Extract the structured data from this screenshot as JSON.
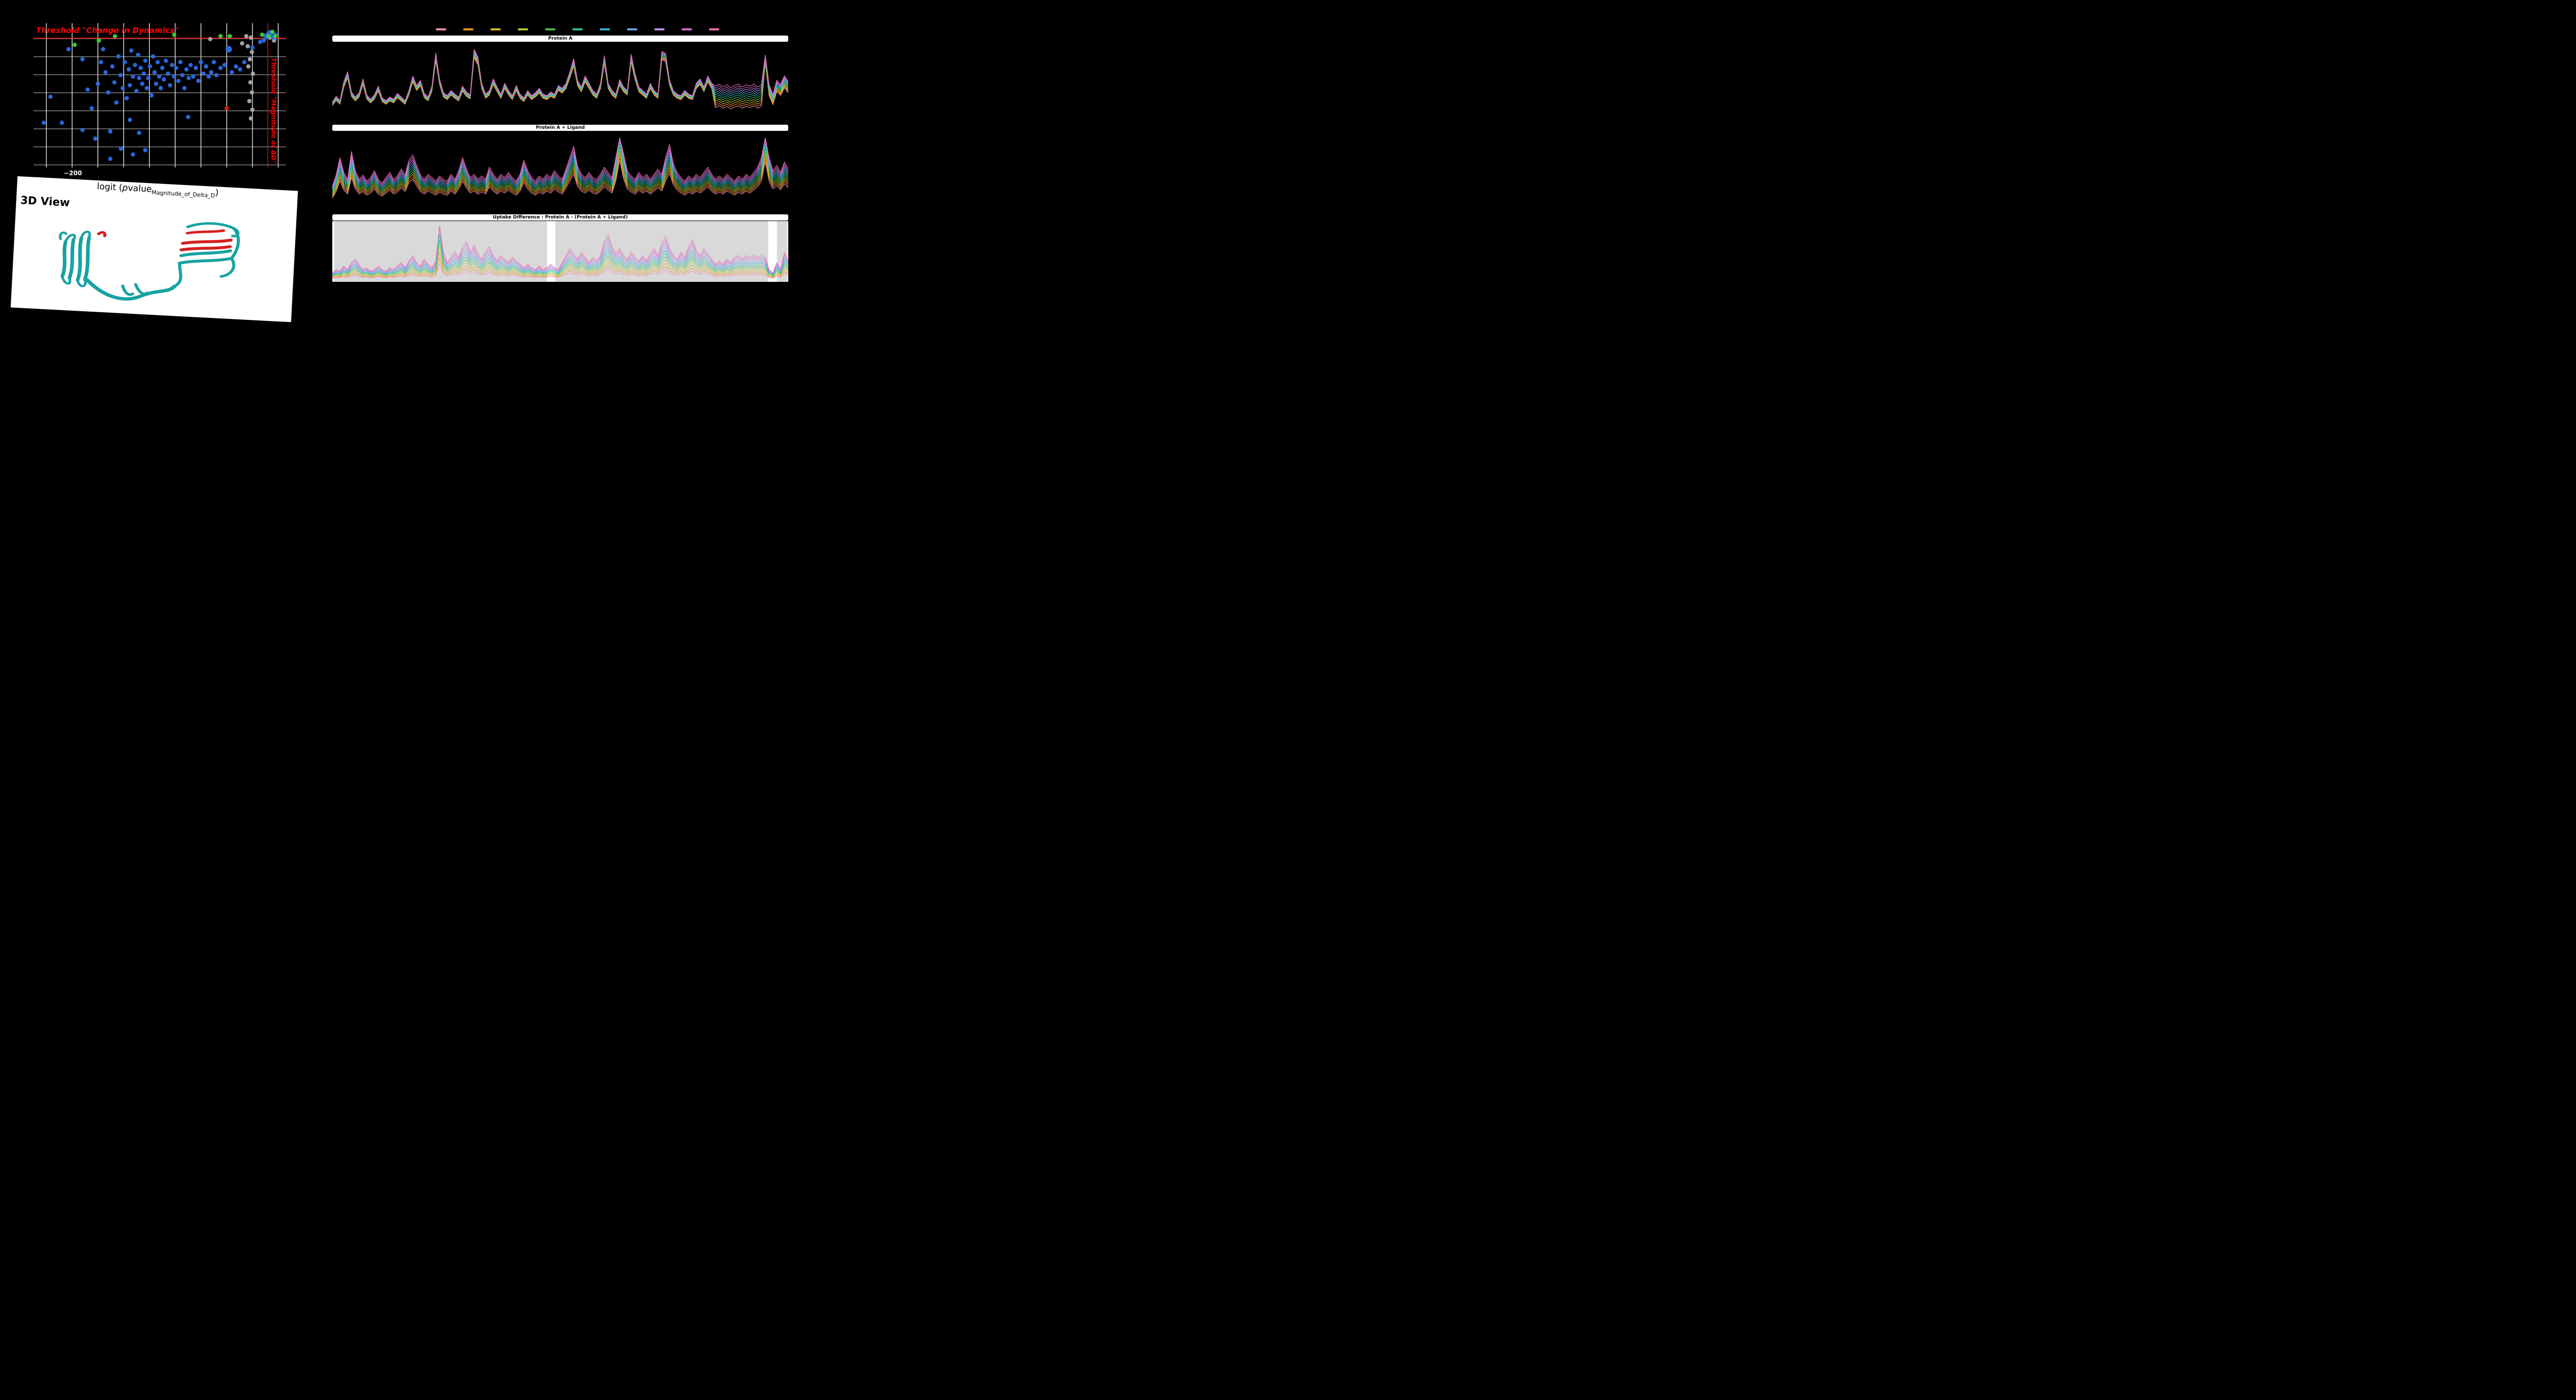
{
  "app": {
    "background": "#000000",
    "accent_threshold": "#ff0000"
  },
  "ui": {
    "volcano": {
      "threshold_top": "Threshold \"Change in Dynamics\"",
      "threshold_right": "Threshold \"Magnitude of ΔD\"",
      "xtick": "−200",
      "xlabel_pre": "logit (",
      "xlabel_p": "p",
      "xlabel_value": "value",
      "xlabel_sub": "Magnitude_of_Delta_D",
      "xlabel_post": ")"
    },
    "view3d": {
      "title": "3D View"
    },
    "panels": [
      {
        "title": "Protein A"
      },
      {
        "title": "Protein A + Ligand"
      },
      {
        "title": "Uptake Difference : Protein A - (Protein A + Ligand)"
      }
    ]
  },
  "view3d": {
    "ribbon_color": "#17a2a2",
    "highlight_color": "#d42020"
  },
  "legend": {
    "colors": [
      "#f48caa",
      "#f1902d",
      "#d9b02c",
      "#a8c93c",
      "#4db84d",
      "#2fbf9a",
      "#2fb6cf",
      "#6f9fe8",
      "#b98fe6",
      "#d06ad0",
      "#ef6fae"
    ]
  },
  "chart_data": [
    {
      "id": "volcano",
      "type": "scatter",
      "xlabel": "logit (pvalue_Magnitude_of_Delta_D)",
      "ylabel": "",
      "xlim": [
        -240,
        10
      ],
      "ylim": [
        0,
        1
      ],
      "xticks": [
        -200
      ],
      "grid": true,
      "threshold_y": 0.896,
      "threshold_x": -8,
      "threshold_color": "#ff0000",
      "colors": {
        "gray": "#a9a9a9",
        "blue": "#2b6be4",
        "green": "#35d435",
        "red": "#e8190f"
      },
      "points": {
        "blue": [
          [
            -229.8,
            0.31
          ],
          [
            -223.2,
            0.49
          ],
          [
            -211.9,
            0.31
          ],
          [
            -205.3,
            0.82
          ],
          [
            -191.5,
            0.75
          ],
          [
            -186.4,
            0.54
          ],
          [
            -182.3,
            0.41
          ],
          [
            -178.8,
            0.2
          ],
          [
            -176.2,
            0.58
          ],
          [
            -173.2,
            0.73
          ],
          [
            -171.1,
            0.82
          ],
          [
            -168.6,
            0.66
          ],
          [
            -166.0,
            0.52
          ],
          [
            -164.0,
            0.25
          ],
          [
            -161.9,
            0.7
          ],
          [
            -159.9,
            0.59
          ],
          [
            -157.9,
            0.45
          ],
          [
            -155.8,
            0.77
          ],
          [
            -153.8,
            0.64
          ],
          [
            -151.7,
            0.55
          ],
          [
            -149.7,
            0.73
          ],
          [
            -147.7,
            0.48
          ],
          [
            -145.6,
            0.68
          ],
          [
            -144.6,
            0.57
          ],
          [
            -143.1,
            0.81
          ],
          [
            -141.5,
            0.63
          ],
          [
            -139.5,
            0.71
          ],
          [
            -138.0,
            0.53
          ],
          [
            -136.4,
            0.78
          ],
          [
            -135.4,
            0.62
          ],
          [
            -133.9,
            0.69
          ],
          [
            -132.3,
            0.58
          ],
          [
            -130.8,
            0.65
          ],
          [
            -129.3,
            0.74
          ],
          [
            -127.8,
            0.55
          ],
          [
            -126.2,
            0.62
          ],
          [
            -124.7,
            0.7
          ],
          [
            -123.2,
            0.5
          ],
          [
            -121.6,
            0.77
          ],
          [
            -120.1,
            0.66
          ],
          [
            -118.6,
            0.58
          ],
          [
            -117.0,
            0.73
          ],
          [
            -115.5,
            0.63
          ],
          [
            -114.0,
            0.55
          ],
          [
            -112.4,
            0.69
          ],
          [
            -110.9,
            0.61
          ],
          [
            -108.9,
            0.74
          ],
          [
            -106.8,
            0.65
          ],
          [
            -104.8,
            0.57
          ],
          [
            -102.8,
            0.71
          ],
          [
            -100.7,
            0.63
          ],
          [
            -98.7,
            0.69
          ],
          [
            -96.6,
            0.6
          ],
          [
            -94.6,
            0.73
          ],
          [
            -92.6,
            0.64
          ],
          [
            -90.5,
            0.55
          ],
          [
            -88.5,
            0.68
          ],
          [
            -86.4,
            0.62
          ],
          [
            -84.4,
            0.71
          ],
          [
            -81.8,
            0.63
          ],
          [
            -79.3,
            0.69
          ],
          [
            -76.7,
            0.6
          ],
          [
            -74.2,
            0.73
          ],
          [
            -71.6,
            0.65
          ],
          [
            -69.1,
            0.7
          ],
          [
            -66.5,
            0.63
          ],
          [
            -64.0,
            0.66
          ],
          [
            -61.4,
            0.73
          ],
          [
            -58.9,
            0.64
          ],
          [
            -54.8,
            0.69
          ],
          [
            -50.7,
            0.71
          ],
          [
            -46.6,
            0.82,
            1.5
          ],
          [
            -43.6,
            0.66
          ],
          [
            -39.5,
            0.7
          ],
          [
            -35.4,
            0.68
          ],
          [
            -31.3,
            0.73
          ],
          [
            -23.2,
            0.83
          ],
          [
            -164.0,
            0.06
          ],
          [
            -153.3,
            0.13
          ],
          [
            -141.5,
            0.09
          ],
          [
            -129.3,
            0.12
          ],
          [
            -144.6,
            0.33
          ],
          [
            -135.4,
            0.24
          ],
          [
            -191.5,
            0.26
          ],
          [
            -86.9,
            0.35
          ],
          [
            -15.5,
            0.87
          ],
          [
            -11.9,
            0.88
          ],
          [
            -8.9,
            0.91,
            1.5
          ],
          [
            -5.8,
            0.93,
            1.5
          ],
          [
            -2.8,
            0.9
          ],
          [
            -0.3,
            0.92
          ]
        ],
        "green": [
          [
            -199.2,
            0.85
          ],
          [
            -175.2,
            0.88
          ],
          [
            -159.4,
            0.91
          ],
          [
            -100.7,
            0.92
          ],
          [
            -54.8,
            0.91
          ],
          [
            -45.6,
            0.91
          ],
          [
            -13.5,
            0.92
          ],
          [
            -7.3,
            0.91
          ],
          [
            -3.3,
            0.94
          ],
          [
            -0.8,
            0.91
          ]
        ],
        "gray": [
          [
            -65.0,
            0.89
          ],
          [
            -33.4,
            0.86
          ],
          [
            -29.3,
            0.91
          ],
          [
            -24.7,
            0.9
          ],
          [
            -27.8,
            0.84
          ],
          [
            -23.7,
            0.8
          ],
          [
            -25.7,
            0.75
          ],
          [
            -27.2,
            0.7
          ],
          [
            -22.7,
            0.65
          ],
          [
            -25.2,
            0.59
          ],
          [
            -23.7,
            0.52
          ],
          [
            -26.2,
            0.46
          ],
          [
            -23.2,
            0.4
          ],
          [
            -24.7,
            0.34
          ],
          [
            -5.8,
            0.9
          ],
          [
            -1.8,
            0.88
          ]
        ],
        "red": [
          [
            -48.7,
            0.41
          ]
        ]
      }
    },
    {
      "id": "protein_a",
      "type": "line",
      "title": "Protein A",
      "n_series": 11,
      "base": [
        0.2,
        0.28,
        0.22,
        0.48,
        0.62,
        0.34,
        0.27,
        0.33,
        0.52,
        0.3,
        0.24,
        0.3,
        0.42,
        0.26,
        0.22,
        0.27,
        0.24,
        0.32,
        0.27,
        0.22,
        0.36,
        0.56,
        0.43,
        0.5,
        0.32,
        0.27,
        0.42,
        0.88,
        0.52,
        0.33,
        0.29,
        0.36,
        0.31,
        0.27,
        0.42,
        0.34,
        0.3,
        0.93,
        0.82,
        0.46,
        0.31,
        0.36,
        0.52,
        0.41,
        0.31,
        0.46,
        0.36,
        0.29,
        0.43,
        0.31,
        0.26,
        0.36,
        0.29,
        0.33,
        0.39,
        0.31,
        0.29,
        0.34,
        0.31,
        0.43,
        0.39,
        0.46,
        0.62,
        0.8,
        0.5,
        0.41,
        0.56,
        0.46,
        0.36,
        0.31,
        0.46,
        0.84,
        0.46,
        0.36,
        0.31,
        0.51,
        0.41,
        0.36,
        0.86,
        0.6,
        0.41,
        0.36,
        0.31,
        0.46,
        0.36,
        0.31,
        0.9,
        0.87,
        0.51,
        0.36,
        0.31,
        0.29,
        0.36,
        0.31,
        0.29,
        0.46,
        0.52,
        0.41,
        0.56,
        0.46,
        0.3,
        0.33,
        0.29,
        0.32,
        0.28,
        0.31,
        0.33,
        0.29,
        0.32,
        0.3,
        0.33,
        0.29,
        0.32,
        0.85,
        0.4,
        0.26,
        0.46,
        0.4,
        0.52,
        0.44
      ],
      "add": {
        "default": 0.003,
        "segments": [
          [
            100,
            112,
            0.028
          ],
          [
            114,
            119,
            0.012
          ]
        ]
      },
      "mult": {
        "default": 0.01,
        "segments": []
      }
    },
    {
      "id": "protein_a_ligand",
      "type": "line",
      "title": "Protein A + Ligand",
      "n_series": 11,
      "base": [
        0.22,
        0.35,
        0.55,
        0.38,
        0.3,
        0.62,
        0.4,
        0.3,
        0.35,
        0.28,
        0.32,
        0.4,
        0.3,
        0.26,
        0.32,
        0.38,
        0.3,
        0.34,
        0.42,
        0.35,
        0.52,
        0.58,
        0.46,
        0.35,
        0.3,
        0.36,
        0.32,
        0.28,
        0.34,
        0.3,
        0.28,
        0.36,
        0.3,
        0.4,
        0.55,
        0.42,
        0.32,
        0.36,
        0.3,
        0.34,
        0.3,
        0.44,
        0.36,
        0.3,
        0.36,
        0.32,
        0.38,
        0.32,
        0.28,
        0.36,
        0.52,
        0.4,
        0.32,
        0.28,
        0.34,
        0.3,
        0.36,
        0.32,
        0.4,
        0.34,
        0.3,
        0.42,
        0.55,
        0.68,
        0.45,
        0.36,
        0.32,
        0.38,
        0.32,
        0.3,
        0.36,
        0.44,
        0.38,
        0.32,
        0.55,
        0.95,
        0.6,
        0.4,
        0.34,
        0.3,
        0.38,
        0.32,
        0.36,
        0.3,
        0.36,
        0.42,
        0.36,
        0.55,
        0.7,
        0.48,
        0.38,
        0.32,
        0.28,
        0.34,
        0.3,
        0.36,
        0.32,
        0.38,
        0.44,
        0.36,
        0.3,
        0.34,
        0.3,
        0.36,
        0.32,
        0.28,
        0.34,
        0.3,
        0.36,
        0.32,
        0.38,
        0.44,
        0.55,
        0.92,
        0.55,
        0.4,
        0.46,
        0.38,
        0.5,
        0.42
      ],
      "add": {
        "default": 0.006,
        "segments": []
      },
      "mult": {
        "default": 0.05,
        "segments": []
      }
    },
    {
      "id": "uptake_difference",
      "type": "line",
      "title": "Uptake Difference : Protein A - (Protein A + Ligand)",
      "n_series": 11,
      "region_fill": "#d9d9d9",
      "regions": [
        [
          0.004,
          0.471
        ],
        [
          0.489,
          0.956
        ],
        [
          0.975,
          0.998
        ]
      ],
      "base": [
        0.06,
        0.1,
        0.08,
        0.14,
        0.1,
        0.18,
        0.22,
        0.15,
        0.1,
        0.12,
        0.08,
        0.1,
        0.14,
        0.1,
        0.08,
        0.12,
        0.1,
        0.14,
        0.18,
        0.12,
        0.2,
        0.26,
        0.18,
        0.14,
        0.22,
        0.16,
        0.12,
        0.2,
        0.85,
        0.3,
        0.18,
        0.24,
        0.3,
        0.24,
        0.36,
        0.42,
        0.3,
        0.38,
        0.28,
        0.22,
        0.3,
        0.36,
        0.26,
        0.2,
        0.26,
        0.22,
        0.18,
        0.24,
        0.2,
        0.16,
        0.12,
        0.16,
        0.12,
        0.1,
        0.14,
        0.1,
        0.12,
        0.16,
        0.12,
        0.1,
        0.18,
        0.26,
        0.34,
        0.28,
        0.22,
        0.3,
        0.24,
        0.18,
        0.24,
        0.2,
        0.26,
        0.42,
        0.5,
        0.36,
        0.28,
        0.34,
        0.26,
        0.22,
        0.3,
        0.24,
        0.2,
        0.26,
        0.2,
        0.28,
        0.34,
        0.26,
        0.4,
        0.48,
        0.34,
        0.26,
        0.22,
        0.3,
        0.24,
        0.36,
        0.44,
        0.32,
        0.26,
        0.34,
        0.28,
        0.22,
        0.16,
        0.2,
        0.16,
        0.22,
        0.18,
        0.24,
        0.26,
        0.22,
        0.26,
        0.24,
        0.26,
        0.24,
        0.26,
        0.24,
        0.1,
        0.06,
        0.18,
        0.1,
        0.3,
        0.2
      ],
      "add": {
        "default": 0.002,
        "segments": []
      },
      "mult": {
        "default": 0.13,
        "segments": []
      }
    }
  ]
}
